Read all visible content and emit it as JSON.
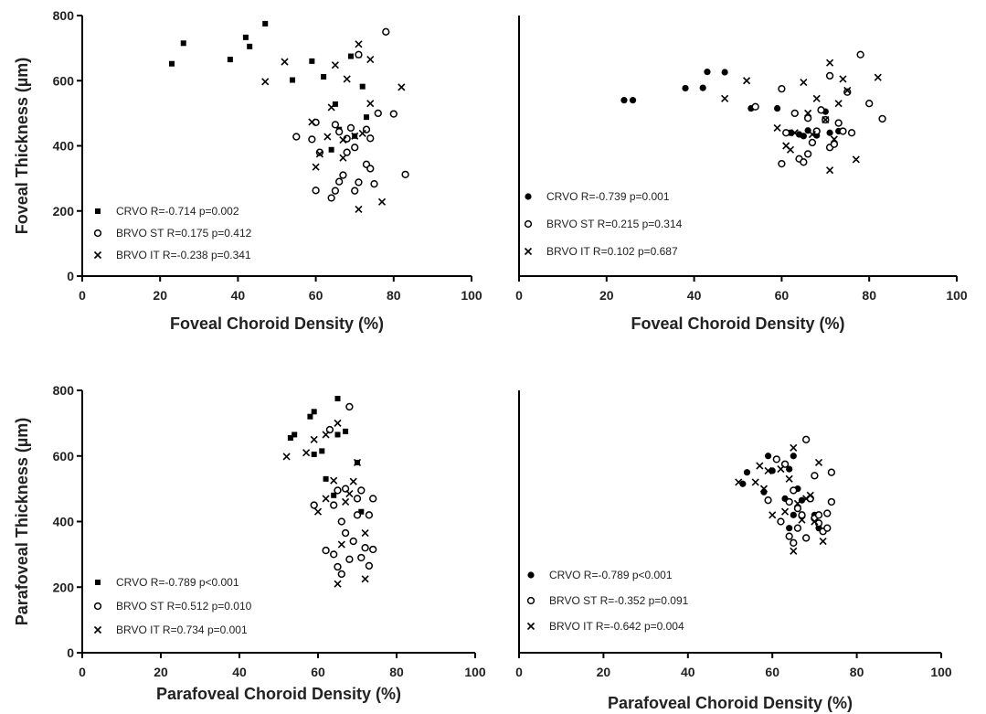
{
  "chart_data": [
    {
      "type": "scatter",
      "xlabel": "Foveal Choroid Density (%)",
      "ylabel": "Foveal Thickness (µm)",
      "xlim": [
        0,
        100
      ],
      "ylim": [
        0,
        800
      ],
      "xticks": [
        "0",
        "20",
        "40",
        "60",
        "80",
        "100"
      ],
      "yticks": [
        "0",
        "200",
        "400",
        "600",
        "800"
      ],
      "grid": false,
      "legend_position": "bottom-left",
      "series": [
        {
          "name": "CRVO R=-0.714 p=0.002",
          "marker": "square",
          "x": [
            23,
            26,
            38,
            42,
            43,
            47,
            54,
            59,
            62,
            64,
            65,
            66,
            69,
            70,
            71,
            72,
            73
          ],
          "y": [
            652,
            715,
            665,
            733,
            705,
            775,
            602,
            660,
            612,
            388,
            528,
            450,
            675,
            430,
            678,
            582,
            488
          ]
        },
        {
          "name": "BRVO ST R=0.175 p=0.412",
          "marker": "circle",
          "x": [
            55,
            59,
            60,
            60,
            61,
            64,
            65,
            65,
            66,
            66,
            67,
            68,
            68,
            69,
            70,
            70,
            71,
            71,
            73,
            73,
            74,
            74,
            75,
            76,
            78,
            80,
            83
          ],
          "y": [
            428,
            420,
            263,
            472,
            380,
            240,
            262,
            465,
            290,
            443,
            310,
            380,
            422,
            455,
            395,
            262,
            288,
            680,
            450,
            343,
            330,
            423,
            283,
            500,
            750,
            498,
            312
          ]
        },
        {
          "name": "BRVO IT R=-0.238 p=0.341",
          "marker": "cross",
          "x": [
            47,
            52,
            59,
            60,
            61,
            63,
            64,
            65,
            67,
            67,
            68,
            70,
            71,
            71,
            72,
            74,
            74,
            77,
            82
          ],
          "y": [
            597,
            658,
            473,
            335,
            375,
            428,
            518,
            648,
            363,
            418,
            605,
            430,
            712,
            205,
            438,
            665,
            530,
            228,
            580
          ]
        }
      ]
    },
    {
      "type": "scatter",
      "xlabel": "Foveal Choroid Density (%)",
      "ylabel": "",
      "xlim": [
        0,
        100
      ],
      "ylim": [
        0,
        800
      ],
      "xticks": [
        "0",
        "20",
        "40",
        "60",
        "80",
        "100"
      ],
      "grid": false,
      "legend_position": "bottom-left",
      "series": [
        {
          "name": "CRVO R=-0.739 p=0.001",
          "marker": "circle-filled",
          "x": [
            24,
            26,
            38,
            42,
            43,
            47,
            53,
            59,
            62,
            63,
            64,
            65,
            66,
            68,
            70,
            71,
            72,
            73
          ],
          "y": [
            540,
            540,
            577,
            578,
            627,
            626,
            515,
            515,
            440,
            500,
            435,
            430,
            447,
            432,
            505,
            440,
            408,
            445
          ]
        },
        {
          "name": "BRVO ST R=0.215 p=0.314",
          "marker": "circle",
          "x": [
            54,
            60,
            60,
            61,
            63,
            64,
            65,
            66,
            66,
            67,
            68,
            69,
            70,
            71,
            71,
            72,
            73,
            74,
            75,
            76,
            78,
            80,
            83
          ],
          "y": [
            520,
            345,
            575,
            440,
            500,
            360,
            350,
            485,
            375,
            410,
            445,
            510,
            480,
            395,
            615,
            405,
            470,
            445,
            565,
            440,
            680,
            530,
            483
          ]
        },
        {
          "name": "BRVO IT R=0.102 p=0.687",
          "marker": "cross",
          "x": [
            47,
            52,
            59,
            61,
            62,
            63,
            65,
            66,
            67,
            68,
            70,
            71,
            71,
            72,
            73,
            74,
            75,
            77,
            82
          ],
          "y": [
            545,
            600,
            455,
            400,
            388,
            440,
            595,
            500,
            435,
            545,
            480,
            655,
            325,
            420,
            530,
            605,
            570,
            358,
            610
          ]
        }
      ]
    },
    {
      "type": "scatter",
      "xlabel": "Parafoveal Choroid Density (%)",
      "ylabel": "Parafoveal Thickness (µm)",
      "xlim": [
        0,
        100
      ],
      "ylim": [
        0,
        800
      ],
      "xticks": [
        "0",
        "20",
        "40",
        "60",
        "80",
        "100"
      ],
      "yticks": [
        "0",
        "200",
        "400",
        "600",
        "800"
      ],
      "grid": false,
      "legend_position": "bottom-left",
      "series": [
        {
          "name": "CRVO R=-0.789 p<0.001",
          "marker": "square",
          "x": [
            53,
            54,
            58,
            59,
            59,
            61,
            62,
            64,
            65,
            65,
            67,
            70,
            71
          ],
          "y": [
            655,
            665,
            720,
            605,
            735,
            615,
            530,
            480,
            665,
            775,
            675,
            580,
            430
          ]
        },
        {
          "name": "BRVO ST R=0.512 p=0.010",
          "marker": "circle",
          "x": [
            59,
            62,
            63,
            64,
            64,
            65,
            65,
            66,
            66,
            67,
            67,
            68,
            68,
            69,
            70,
            70,
            71,
            71,
            72,
            73,
            73,
            74,
            74
          ],
          "y": [
            450,
            312,
            680,
            300,
            450,
            262,
            495,
            240,
            400,
            365,
            500,
            285,
            750,
            340,
            470,
            420,
            290,
            495,
            320,
            420,
            265,
            470,
            315
          ]
        },
        {
          "name": "BRVO IT R=0.734 p=0.001",
          "marker": "cross",
          "x": [
            52,
            57,
            59,
            60,
            62,
            62,
            64,
            65,
            65,
            66,
            67,
            68,
            69,
            70,
            72,
            72
          ],
          "y": [
            598,
            610,
            650,
            430,
            665,
            470,
            525,
            210,
            700,
            330,
            460,
            485,
            522,
            580,
            365,
            225
          ]
        }
      ]
    },
    {
      "type": "scatter",
      "xlabel": "Parafoveal Choroid Density (%)",
      "ylabel": "",
      "xlim": [
        0,
        100
      ],
      "ylim": [
        0,
        800
      ],
      "xticks": [
        "0",
        "20",
        "40",
        "60",
        "80",
        "100"
      ],
      "grid": false,
      "legend_position": "bottom-left",
      "series": [
        {
          "name": "CRVO R=-0.789 p<0.001",
          "marker": "circle-filled",
          "x": [
            53,
            54,
            58,
            59,
            60,
            62,
            63,
            64,
            64,
            65,
            65,
            66,
            67,
            70,
            71
          ],
          "y": [
            515,
            550,
            490,
            600,
            555,
            400,
            470,
            380,
            560,
            420,
            600,
            500,
            465,
            420,
            380
          ]
        },
        {
          "name": "BRVO ST R=-0.352 p=0.091",
          "marker": "circle",
          "x": [
            59,
            61,
            62,
            63,
            64,
            64,
            65,
            65,
            66,
            66,
            67,
            68,
            68,
            69,
            70,
            70,
            71,
            71,
            72,
            73,
            73,
            74,
            74
          ],
          "y": [
            465,
            590,
            400,
            575,
            355,
            460,
            335,
            495,
            380,
            440,
            420,
            650,
            350,
            470,
            410,
            540,
            395,
            420,
            370,
            425,
            380,
            460,
            550
          ]
        },
        {
          "name": "BRVO IT R=-0.642 p=0.004",
          "marker": "cross",
          "x": [
            52,
            56,
            57,
            58,
            59,
            60,
            62,
            63,
            64,
            65,
            65,
            66,
            67,
            68,
            69,
            70,
            71,
            72
          ],
          "y": [
            520,
            520,
            570,
            500,
            555,
            420,
            560,
            430,
            530,
            310,
            625,
            455,
            405,
            470,
            480,
            400,
            580,
            340
          ]
        }
      ]
    }
  ]
}
